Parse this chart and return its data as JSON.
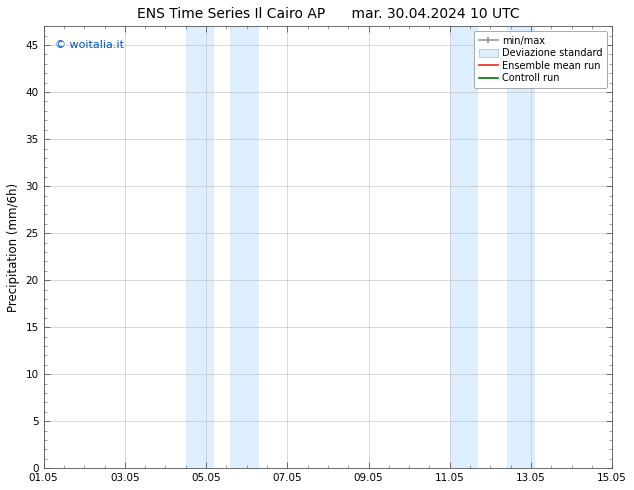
{
  "title": "ENS Time Series Il Cairo AP",
  "title2": "mar. 30.04.2024 10 UTC",
  "ylabel": "Precipitation (mm/6h)",
  "watermark": "© woitalia.it",
  "watermark_color": "#0055cc",
  "xlim": [
    0,
    14
  ],
  "ylim": [
    0,
    47
  ],
  "yticks": [
    0,
    5,
    10,
    15,
    20,
    25,
    30,
    35,
    40,
    45
  ],
  "xtick_labels": [
    "01.05",
    "03.05",
    "05.05",
    "07.05",
    "09.05",
    "11.05",
    "13.05",
    "15.05"
  ],
  "xtick_positions": [
    0,
    2,
    4,
    6,
    8,
    10,
    12,
    14
  ],
  "shaded_bands": [
    {
      "xstart": 3.5,
      "xend": 4.2
    },
    {
      "xstart": 4.6,
      "xend": 5.3
    },
    {
      "xstart": 10.0,
      "xend": 10.7
    },
    {
      "xstart": 11.4,
      "xend": 12.1
    }
  ],
  "shaded_color": "#ddeeff",
  "background_color": "#ffffff",
  "minor_tick_interval": 0.5,
  "title_fontsize": 10,
  "tick_fontsize": 7.5,
  "ylabel_fontsize": 8.5,
  "legend_fontsize": 7
}
